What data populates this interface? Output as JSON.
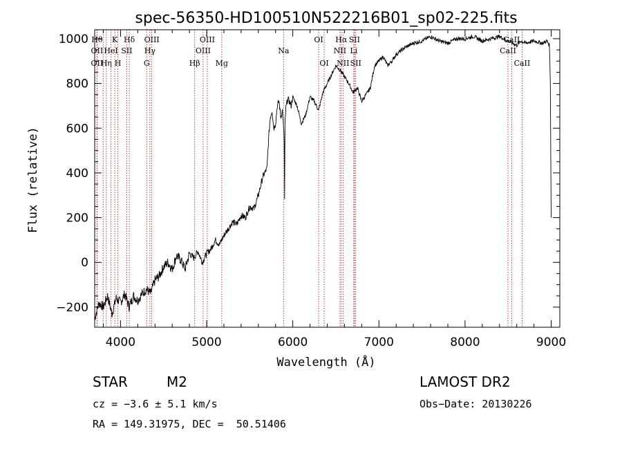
{
  "chart_data": {
    "type": "line",
    "title": "spec-56350-HD100510N522216B01_sp02-225.fits",
    "xlabel": "Wavelength (Å)",
    "ylabel": "Flux (relative)",
    "xlim": [
      3700,
      9100
    ],
    "ylim": [
      -290,
      1040
    ],
    "xticks": [
      4000,
      5000,
      6000,
      7000,
      8000,
      9000
    ],
    "yticks": [
      -200,
      0,
      200,
      400,
      600,
      800,
      1000
    ],
    "grid": false,
    "series": [
      {
        "x": [
          3700,
          3750,
          3800,
          3850,
          3900,
          3950,
          4000,
          4050,
          4100,
          4150,
          4200,
          4250,
          4300,
          4350,
          4400,
          4450,
          4500,
          4550,
          4600,
          4650,
          4700,
          4750,
          4800,
          4850,
          4900,
          4950,
          5000,
          5050,
          5100,
          5150,
          5200,
          5250,
          5300,
          5350,
          5400,
          5450,
          5500,
          5550,
          5600,
          5650,
          5700,
          5720,
          5740,
          5760,
          5780,
          5800,
          5820,
          5840,
          5860,
          5880,
          5900,
          5905,
          5910,
          5920,
          5940,
          5960,
          5980,
          6000,
          6050,
          6100,
          6150,
          6200,
          6250,
          6300,
          6350,
          6400,
          6450,
          6500,
          6550,
          6600,
          6650,
          6700,
          6750,
          6800,
          6850,
          6900,
          6950,
          7000,
          7050,
          7100,
          7150,
          7200,
          7300,
          7400,
          7500,
          7600,
          7700,
          7800,
          7900,
          8000,
          8100,
          8200,
          8300,
          8400,
          8500,
          8550,
          8600,
          8650,
          8700,
          8800,
          8900,
          8950,
          8980,
          8990,
          9000
        ],
        "y": [
          -250,
          -180,
          -200,
          -150,
          -230,
          -160,
          -180,
          -140,
          -200,
          -150,
          -170,
          -140,
          -120,
          -140,
          -80,
          -60,
          -20,
          0,
          -30,
          30,
          10,
          -30,
          40,
          20,
          50,
          0,
          40,
          60,
          100,
          80,
          120,
          150,
          180,
          170,
          210,
          200,
          250,
          240,
          300,
          380,
          420,
          560,
          650,
          680,
          600,
          620,
          700,
          720,
          650,
          680,
          550,
          280,
          620,
          690,
          730,
          720,
          700,
          740,
          700,
          620,
          660,
          740,
          720,
          680,
          760,
          800,
          840,
          880,
          860,
          830,
          800,
          760,
          780,
          720,
          750,
          780,
          880,
          900,
          920,
          880,
          900,
          930,
          960,
          980,
          990,
          1010,
          990,
          980,
          1000,
          1000,
          1010,
          990,
          1000,
          1010,
          990,
          980,
          970,
          990,
          980,
          990,
          980,
          990,
          970,
          800,
          200
        ]
      }
    ],
    "line_markers": [
      {
        "wl": 3727,
        "row": 1,
        "label": "Hθ"
      },
      {
        "wl": 3727,
        "row": 2,
        "label": "OII"
      },
      {
        "wl": 3727,
        "row": 3,
        "label": "OII"
      },
      {
        "wl": 3798,
        "row": 1,
        "label": ""
      },
      {
        "wl": 3835,
        "row": 3,
        "label": "Hη"
      },
      {
        "wl": 3889,
        "row": 2,
        "label": "HeI"
      },
      {
        "wl": 3934,
        "row": 1,
        "label": "K"
      },
      {
        "wl": 3969,
        "row": 3,
        "label": "H"
      },
      {
        "wl": 4072,
        "row": 2,
        "label": "SII"
      },
      {
        "wl": 4102,
        "row": 1,
        "label": "Hδ"
      },
      {
        "wl": 4304,
        "row": 3,
        "label": "G"
      },
      {
        "wl": 4341,
        "row": 2,
        "label": "Hγ"
      },
      {
        "wl": 4363,
        "row": 1,
        "label": "OIII"
      },
      {
        "wl": 4861,
        "row": 3,
        "label": "Hβ"
      },
      {
        "wl": 4959,
        "row": 2,
        "label": "OIII"
      },
      {
        "wl": 5007,
        "row": 1,
        "label": "OIII"
      },
      {
        "wl": 5175,
        "row": 3,
        "label": "Mg"
      },
      {
        "wl": 5893,
        "row": 2,
        "label": "Na"
      },
      {
        "wl": 6300,
        "row": 1,
        "label": "OI"
      },
      {
        "wl": 6364,
        "row": 3,
        "label": "OI"
      },
      {
        "wl": 6548,
        "row": 2,
        "label": "NII"
      },
      {
        "wl": 6563,
        "row": 1,
        "label": "Hα"
      },
      {
        "wl": 6583,
        "row": 3,
        "label": "NII"
      },
      {
        "wl": 6708,
        "row": 2,
        "label": "Li"
      },
      {
        "wl": 6716,
        "row": 1,
        "label": "SII"
      },
      {
        "wl": 6731,
        "row": 3,
        "label": "SII"
      },
      {
        "wl": 8498,
        "row": 2,
        "label": "CaII"
      },
      {
        "wl": 8542,
        "row": 1,
        "label": "CaII"
      },
      {
        "wl": 8662,
        "row": 3,
        "label": "CaII"
      }
    ]
  },
  "info": {
    "class": "STAR",
    "subclass": "M2",
    "cz": "cz = −3.6 ± 5.1 km/s",
    "radec": "RA = 149.31975, DEC =  50.51406",
    "survey": "LAMOST DR2",
    "obsdate": "Obs−Date: 20130226"
  },
  "colors": {
    "line_marker": "#a01010",
    "spectrum": "#000000"
  }
}
